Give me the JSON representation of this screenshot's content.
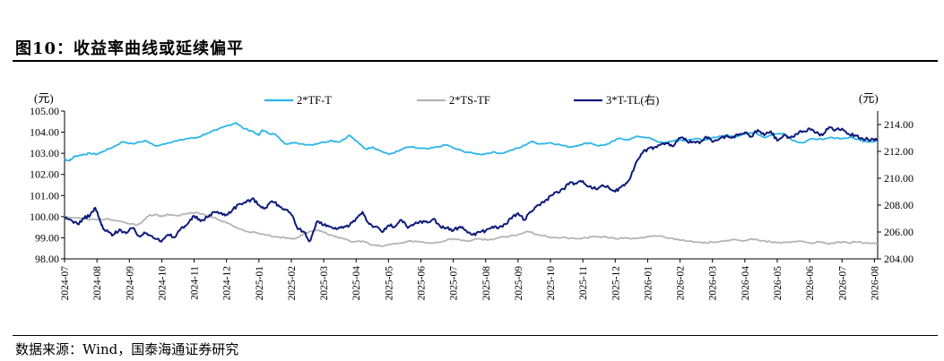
{
  "title": "图10：收益率曲线或延续偏平",
  "source": "数据来源：Wind，国泰海通证券研究",
  "chart_data": {
    "type": "line",
    "left_unit": "(元)",
    "right_unit": "(元)",
    "left_axis": {
      "ylim": [
        98.0,
        105.0
      ],
      "ticks": [
        "98.00",
        "99.00",
        "100.00",
        "101.00",
        "102.00",
        "103.00",
        "104.00",
        "105.00"
      ]
    },
    "right_axis": {
      "ylim": [
        204.0,
        215.0
      ],
      "ticks": [
        "204.00",
        "206.00",
        "208.00",
        "210.00",
        "212.00",
        "214.00"
      ]
    },
    "x_ticks": [
      "2024-07",
      "2024-08",
      "2024-09",
      "2024-10",
      "2024-11",
      "2024-12",
      "2025-01",
      "2025-02",
      "2025-03",
      "2025-04",
      "2025-05",
      "2025-06",
      "2025-07",
      "2025-08",
      "2025-09",
      "2025-10",
      "2025-11",
      "2025-12",
      "2026-01",
      "2026-02",
      "2026-03",
      "2026-04",
      "2026-05",
      "2026-06",
      "2026-07",
      "2026-08"
    ],
    "series": [
      {
        "name": "2*TF-T",
        "axis": "left",
        "color": "#2BB5E8",
        "t": [
          0,
          0.1,
          0.2,
          0.3,
          0.45,
          0.6,
          0.8,
          1.0,
          1.2,
          1.5,
          1.8,
          2.1,
          2.5,
          2.8,
          3.2,
          3.5,
          3.8,
          4.1,
          4.4,
          4.7,
          5.0,
          5.3,
          5.5,
          5.8,
          6.0,
          6.1,
          6.3,
          6.5,
          6.8,
          7.0,
          7.3,
          7.6,
          7.9,
          8.2,
          8.5,
          8.8,
          9.1,
          9.3,
          9.5,
          9.7,
          10.0,
          10.3,
          10.6,
          10.9,
          11.2,
          11.5,
          11.8,
          12.0,
          12.3,
          12.6,
          12.9,
          13.2,
          13.5,
          13.8,
          14.1,
          14.4,
          14.7,
          15.0,
          15.3,
          15.6,
          15.9,
          16.2,
          16.5,
          16.8,
          17.1,
          17.4,
          17.7,
          18.0,
          18.3,
          18.6,
          18.9,
          19.2,
          19.5,
          19.8,
          20.1,
          20.4,
          20.7,
          21.0,
          21.3,
          21.6,
          21.9,
          22.2,
          22.5,
          22.8,
          23.1,
          23.4,
          23.7,
          24.0,
          24.3,
          24.6,
          24.9,
          25.1
        ],
        "values": [
          102.75,
          102.65,
          102.7,
          102.85,
          102.9,
          102.95,
          103.0,
          102.95,
          103.1,
          103.3,
          103.55,
          103.45,
          103.6,
          103.35,
          103.5,
          103.6,
          103.7,
          103.75,
          103.95,
          104.1,
          104.3,
          104.45,
          104.2,
          104.05,
          103.85,
          104.1,
          103.95,
          103.9,
          103.45,
          103.5,
          103.45,
          103.4,
          103.5,
          103.6,
          103.55,
          103.85,
          103.45,
          103.2,
          103.3,
          103.15,
          102.95,
          103.1,
          103.3,
          103.25,
          103.2,
          103.3,
          103.4,
          103.25,
          103.1,
          103.0,
          102.95,
          103.05,
          103.0,
          103.15,
          103.3,
          103.55,
          103.45,
          103.5,
          103.4,
          103.3,
          103.4,
          103.5,
          103.35,
          103.45,
          103.7,
          103.65,
          103.8,
          103.75,
          103.55,
          103.5,
          103.65,
          103.6,
          103.7,
          103.65,
          103.75,
          103.85,
          103.8,
          103.9,
          104.0,
          103.75,
          103.9,
          103.95,
          103.6,
          103.5,
          103.7,
          103.65,
          103.75,
          103.7,
          103.75,
          103.6,
          103.55,
          103.6
        ]
      },
      {
        "name": "2*TS-TF",
        "axis": "left",
        "color": "#B4B4B4",
        "t": [
          0,
          0.3,
          0.6,
          1.0,
          1.3,
          1.6,
          1.9,
          2.2,
          2.4,
          2.6,
          2.8,
          3.0,
          3.2,
          3.5,
          3.8,
          4.1,
          4.4,
          4.7,
          5.0,
          5.3,
          5.6,
          5.9,
          6.2,
          6.5,
          6.8,
          7.1,
          7.4,
          7.6,
          7.8,
          8.0,
          8.3,
          8.6,
          8.9,
          9.2,
          9.5,
          9.8,
          10.1,
          10.4,
          10.7,
          11.0,
          11.3,
          11.6,
          11.9,
          12.2,
          12.5,
          12.8,
          13.1,
          13.4,
          13.7,
          14.0,
          14.3,
          14.6,
          14.9,
          15.2,
          15.5,
          15.8,
          16.1,
          16.4,
          16.7,
          17.0,
          17.3,
          17.6,
          17.9,
          18.2,
          18.5,
          18.8,
          19.1,
          19.4,
          19.7,
          20.0,
          20.3,
          20.6,
          20.9,
          21.2,
          21.5,
          21.8,
          22.1,
          22.4,
          22.7,
          23.0,
          23.3,
          23.6,
          23.9,
          24.2,
          24.5,
          24.8,
          25.1
        ],
        "values": [
          100.0,
          99.95,
          99.9,
          99.85,
          99.9,
          99.8,
          99.7,
          99.6,
          99.75,
          100.05,
          100.1,
          100.0,
          100.1,
          100.05,
          100.15,
          100.2,
          100.05,
          99.9,
          99.7,
          99.5,
          99.3,
          99.25,
          99.15,
          99.05,
          99.0,
          98.95,
          99.2,
          99.3,
          99.35,
          99.25,
          99.1,
          98.95,
          98.8,
          98.85,
          98.65,
          98.6,
          98.7,
          98.75,
          98.85,
          98.8,
          98.75,
          98.8,
          98.95,
          98.9,
          98.85,
          98.95,
          98.9,
          99.0,
          99.05,
          99.15,
          99.3,
          99.15,
          99.05,
          99.0,
          99.0,
          98.95,
          99.0,
          99.05,
          99.05,
          98.95,
          99.0,
          98.95,
          99.0,
          99.1,
          99.05,
          98.95,
          98.9,
          98.8,
          98.75,
          98.8,
          98.85,
          98.9,
          98.85,
          98.95,
          98.85,
          98.8,
          98.75,
          98.8,
          98.85,
          98.75,
          98.8,
          98.7,
          98.8,
          98.75,
          98.8,
          98.75,
          98.7
        ]
      },
      {
        "name": "3*T-TL(右)",
        "axis": "right",
        "color": "#0D1A7A",
        "t": [
          0,
          0.2,
          0.4,
          0.6,
          0.8,
          0.95,
          1.1,
          1.2,
          1.35,
          1.5,
          1.7,
          1.9,
          2.1,
          2.3,
          2.5,
          2.7,
          2.9,
          3.0,
          3.2,
          3.4,
          3.6,
          3.8,
          4.0,
          4.2,
          4.4,
          4.6,
          4.8,
          5.0,
          5.2,
          5.4,
          5.6,
          5.8,
          6.0,
          6.2,
          6.4,
          6.6,
          6.8,
          7.0,
          7.2,
          7.4,
          7.55,
          7.65,
          7.8,
          8.0,
          8.2,
          8.4,
          8.6,
          8.8,
          9.0,
          9.2,
          9.4,
          9.6,
          9.8,
          10.0,
          10.2,
          10.4,
          10.6,
          10.8,
          11.0,
          11.2,
          11.4,
          11.6,
          11.8,
          12.0,
          12.2,
          12.4,
          12.6,
          12.8,
          13.0,
          13.2,
          13.4,
          13.6,
          13.8,
          14.0,
          14.2,
          14.4,
          14.6,
          14.8,
          15.0,
          15.2,
          15.4,
          15.6,
          15.8,
          16.0,
          16.2,
          16.4,
          16.6,
          16.8,
          17.0,
          17.2,
          17.4,
          17.6,
          17.8,
          18.0,
          18.2,
          18.4,
          18.6,
          18.8,
          19.0,
          19.2,
          19.4,
          19.6,
          19.8,
          20.0,
          20.2,
          20.4,
          20.6,
          20.8,
          21.0,
          21.2,
          21.4,
          21.6,
          21.8,
          22.0,
          22.2,
          22.4,
          22.6,
          22.8,
          23.0,
          23.2,
          23.4,
          23.6,
          23.8,
          24.0,
          24.2,
          24.4,
          24.6,
          24.8,
          25.0,
          25.1
        ],
        "values": [
          207.0,
          206.9,
          206.6,
          207.0,
          207.3,
          207.8,
          206.8,
          206.2,
          206.0,
          205.8,
          206.2,
          205.9,
          206.3,
          205.7,
          205.9,
          205.7,
          205.5,
          205.3,
          205.8,
          205.6,
          206.3,
          206.6,
          207.2,
          206.8,
          207.1,
          207.5,
          207.4,
          207.3,
          207.7,
          208.1,
          208.2,
          208.5,
          208.0,
          207.8,
          208.3,
          208.0,
          207.7,
          207.3,
          206.2,
          206.0,
          205.3,
          205.8,
          206.8,
          206.5,
          206.4,
          206.2,
          206.3,
          206.5,
          207.0,
          207.5,
          206.6,
          206.4,
          206.0,
          206.5,
          206.4,
          206.9,
          206.3,
          206.6,
          206.8,
          206.7,
          207.0,
          206.4,
          206.3,
          206.1,
          206.4,
          206.1,
          205.8,
          206.0,
          206.1,
          206.4,
          206.3,
          206.6,
          207.0,
          207.4,
          206.9,
          207.5,
          208.0,
          208.2,
          208.7,
          209.0,
          209.2,
          209.7,
          209.6,
          209.8,
          209.4,
          209.2,
          209.5,
          209.3,
          209.0,
          209.4,
          209.8,
          210.9,
          211.8,
          212.2,
          212.3,
          212.5,
          212.6,
          212.4,
          213.0,
          212.8,
          212.7,
          212.6,
          213.1,
          212.7,
          212.9,
          213.1,
          213.0,
          213.2,
          213.4,
          213.1,
          213.6,
          213.2,
          213.5,
          212.8,
          213.2,
          213.0,
          213.3,
          213.5,
          213.7,
          213.4,
          213.2,
          213.8,
          213.6,
          213.7,
          213.3,
          213.2,
          213.0,
          212.9,
          212.8,
          212.9
        ]
      }
    ]
  }
}
